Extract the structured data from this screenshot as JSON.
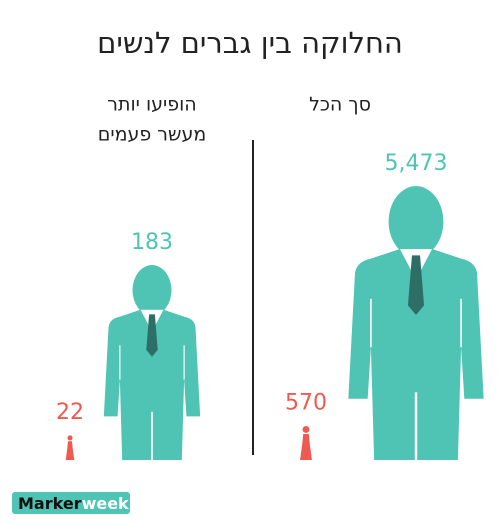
{
  "title": "החלוקה בין גברים לנשים",
  "chart_data": [
    {
      "type": "pictogram",
      "title": [
        "סך הכל"
      ],
      "values": [
        570,
        5473
      ],
      "value_labels": [
        "570",
        "5,473"
      ],
      "shapes": [
        "woman",
        "man"
      ],
      "colors": [
        "#ee5a4f",
        "#4fc4b4"
      ]
    },
    {
      "type": "pictogram",
      "title": [
        "הופיעו יותר",
        "מעשר פעמים"
      ],
      "values": [
        22,
        183
      ],
      "value_labels": [
        "22",
        "183"
      ],
      "shapes": [
        "woman",
        "man"
      ],
      "colors": [
        "#ee5a4f",
        "#4fc4b4"
      ]
    }
  ],
  "logo": {
    "brand": "Marker",
    "suffix": "week"
  }
}
